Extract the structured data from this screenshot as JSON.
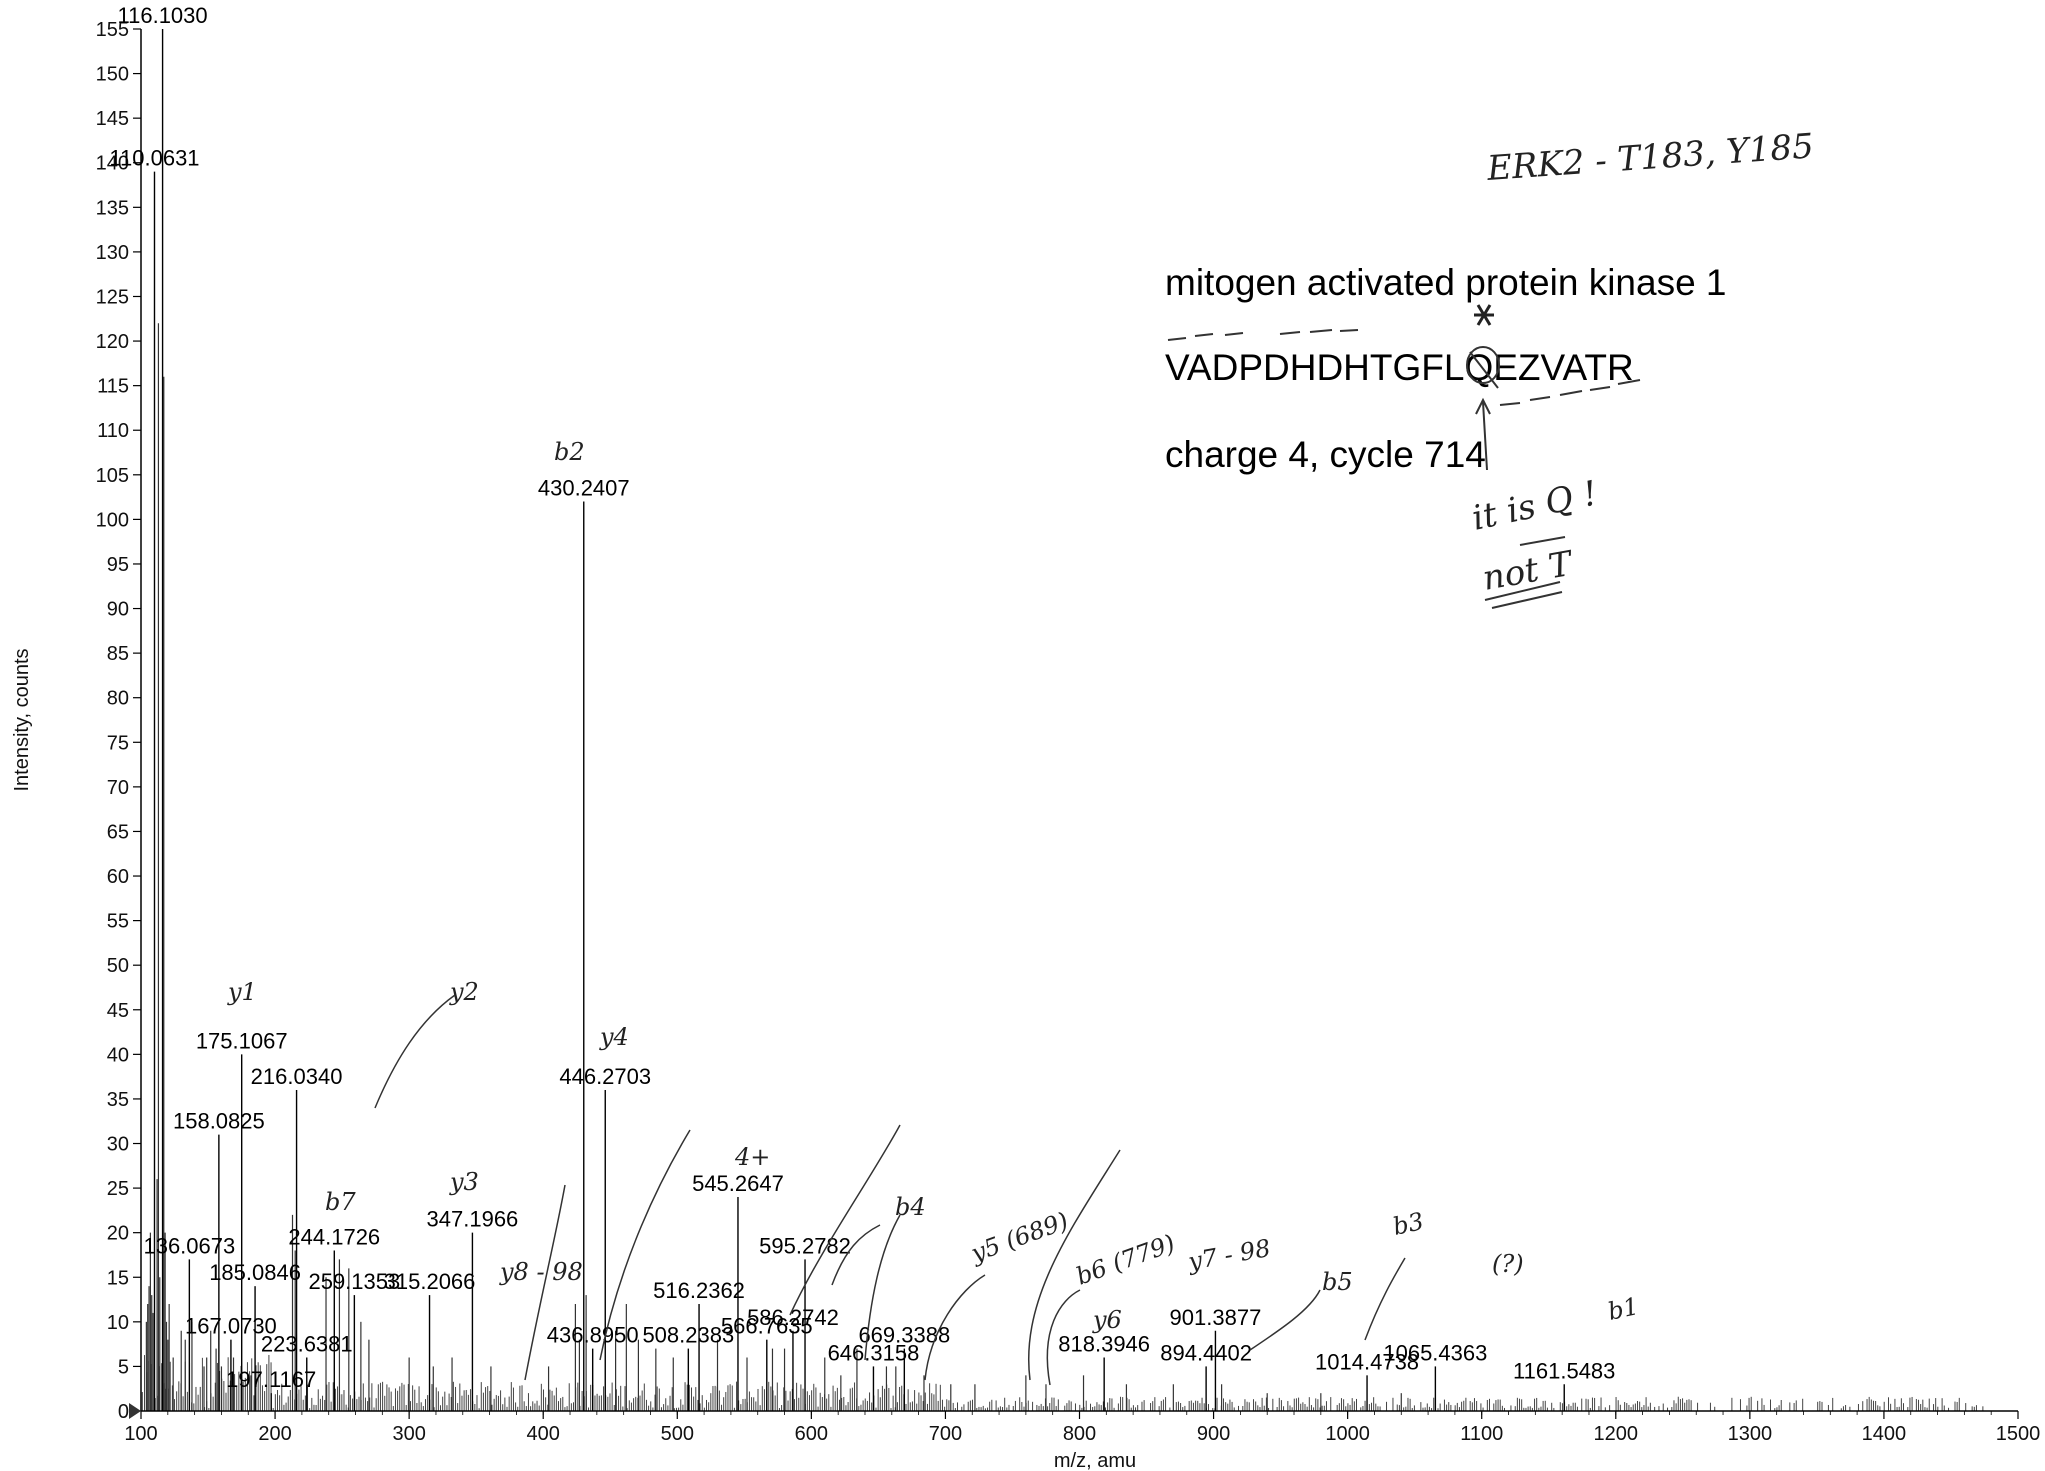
{
  "chart_data": {
    "type": "bar",
    "subtype": "mass-spectrum-stick",
    "xlabel": "m/z, amu",
    "ylabel": "Intensity, counts",
    "xlim": [
      100,
      1500
    ],
    "ylim": [
      0,
      155
    ],
    "x_ticks": [
      100,
      200,
      300,
      400,
      500,
      600,
      700,
      800,
      900,
      1000,
      1100,
      1200,
      1300,
      1400,
      1500
    ],
    "y_ticks": [
      0,
      5,
      10,
      15,
      20,
      25,
      30,
      35,
      40,
      45,
      50,
      55,
      60,
      65,
      70,
      75,
      80,
      85,
      90,
      95,
      100,
      105,
      110,
      115,
      120,
      125,
      130,
      135,
      140,
      145,
      150,
      155
    ],
    "grid": false,
    "legend": "none",
    "peaks": [
      {
        "mz": 110.0631,
        "intensity": 139,
        "label": "110.0631"
      },
      {
        "mz": 116.103,
        "intensity": 155,
        "label": "116.1030"
      },
      {
        "mz": 136.0673,
        "intensity": 17,
        "label": "136.0673"
      },
      {
        "mz": 158.0825,
        "intensity": 31,
        "label": "158.0825"
      },
      {
        "mz": 167.073,
        "intensity": 8,
        "label": "167.0730"
      },
      {
        "mz": 175.1067,
        "intensity": 40,
        "label": "175.1067"
      },
      {
        "mz": 185.0846,
        "intensity": 14,
        "label": "185.0846"
      },
      {
        "mz": 197.1167,
        "intensity": 2,
        "label": "197.1167"
      },
      {
        "mz": 216.034,
        "intensity": 36,
        "label": "216.0340"
      },
      {
        "mz": 223.6381,
        "intensity": 6,
        "label": "223.6381"
      },
      {
        "mz": 244.1726,
        "intensity": 18,
        "label": "244.1726"
      },
      {
        "mz": 259.1353,
        "intensity": 13,
        "label": "259.1353"
      },
      {
        "mz": 315.2066,
        "intensity": 13,
        "label": "315.2066"
      },
      {
        "mz": 347.1966,
        "intensity": 20,
        "label": "347.1966"
      },
      {
        "mz": 430.2407,
        "intensity": 102,
        "label": "430.2407"
      },
      {
        "mz": 436.895,
        "intensity": 7,
        "label": "436.8950"
      },
      {
        "mz": 446.2703,
        "intensity": 36,
        "label": "446.2703"
      },
      {
        "mz": 508.2383,
        "intensity": 7,
        "label": "508.2383"
      },
      {
        "mz": 516.2362,
        "intensity": 12,
        "label": "516.2362"
      },
      {
        "mz": 545.2647,
        "intensity": 24,
        "label": "545.2647"
      },
      {
        "mz": 566.7635,
        "intensity": 8,
        "label": "566.7635"
      },
      {
        "mz": 586.2742,
        "intensity": 9,
        "label": "586.2742"
      },
      {
        "mz": 595.2782,
        "intensity": 17,
        "label": "595.2782"
      },
      {
        "mz": 646.3158,
        "intensity": 5,
        "label": "646.3158"
      },
      {
        "mz": 669.3388,
        "intensity": 7,
        "label": "669.3388"
      },
      {
        "mz": 818.3946,
        "intensity": 6,
        "label": "818.3946"
      },
      {
        "mz": 894.4402,
        "intensity": 5,
        "label": "894.4402"
      },
      {
        "mz": 901.3877,
        "intensity": 9,
        "label": "901.3877"
      },
      {
        "mz": 1014.4738,
        "intensity": 4,
        "label": "1014.4738"
      },
      {
        "mz": 1065.4363,
        "intensity": 5,
        "label": "1065.4363"
      },
      {
        "mz": 1161.5483,
        "intensity": 3,
        "label": "1161.5483"
      }
    ],
    "annotations": {
      "protein": "mitogen activated protein kinase 1",
      "sequence": "VADPDHDHTGFLQEZVATR",
      "charge_cycle": "charge 4, cycle 714"
    },
    "handwritten_notes": [
      "ERK2 - T183, Y185",
      "it is Q !",
      "not T",
      "y1",
      "y2",
      "y3",
      "y4",
      "y5 (689)",
      "y6",
      "y7 - 98",
      "y8 - 98",
      "b2",
      "b3",
      "b4",
      "b5",
      "b7",
      "b1",
      "b6 (779)",
      "(?)",
      "4+"
    ]
  }
}
